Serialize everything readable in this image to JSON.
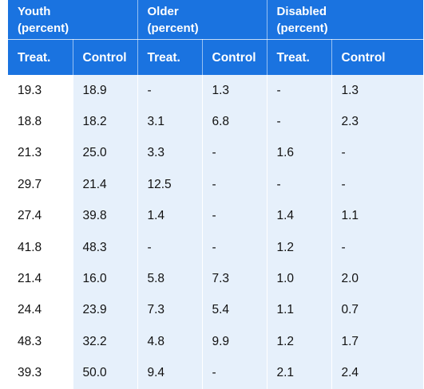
{
  "groups": [
    {
      "label_line1": "Youth",
      "label_line2": "(percent)"
    },
    {
      "label_line1": "Older",
      "label_line2": "(percent)"
    },
    {
      "label_line1": "Disabled",
      "label_line2": "(percent)"
    }
  ],
  "subheaders": [
    "Treat.",
    "Control",
    "Treat.",
    "Control",
    "Treat.",
    "Control"
  ],
  "rows": [
    [
      "19.3",
      "18.9",
      "-",
      "1.3",
      "-",
      "1.3"
    ],
    [
      "18.8",
      "18.2",
      "3.1",
      "6.8",
      "-",
      "2.3"
    ],
    [
      "21.3",
      "25.0",
      "3.3",
      "-",
      "1.6",
      "-"
    ],
    [
      "29.7",
      "21.4",
      "12.5",
      "-",
      "-",
      "-"
    ],
    [
      "27.4",
      "39.8",
      "1.4",
      "-",
      "1.4",
      "1.1"
    ],
    [
      "41.8",
      "48.3",
      "-",
      "-",
      "1.2",
      "-"
    ],
    [
      "21.4",
      "16.0",
      "5.8",
      "7.3",
      "1.0",
      "2.0"
    ],
    [
      "24.4",
      "23.9",
      "7.3",
      "5.4",
      "1.1",
      "0.7"
    ],
    [
      "48.3",
      "32.2",
      "4.8",
      "9.9",
      "1.2",
      "1.7"
    ],
    [
      "39.3",
      "50.0",
      "9.4",
      "-",
      "2.1",
      "2.4"
    ]
  ],
  "colors": {
    "header_bg": "#1a73e0",
    "header_text": "#ffffff",
    "shaded_cell": "#e6f0fb"
  }
}
